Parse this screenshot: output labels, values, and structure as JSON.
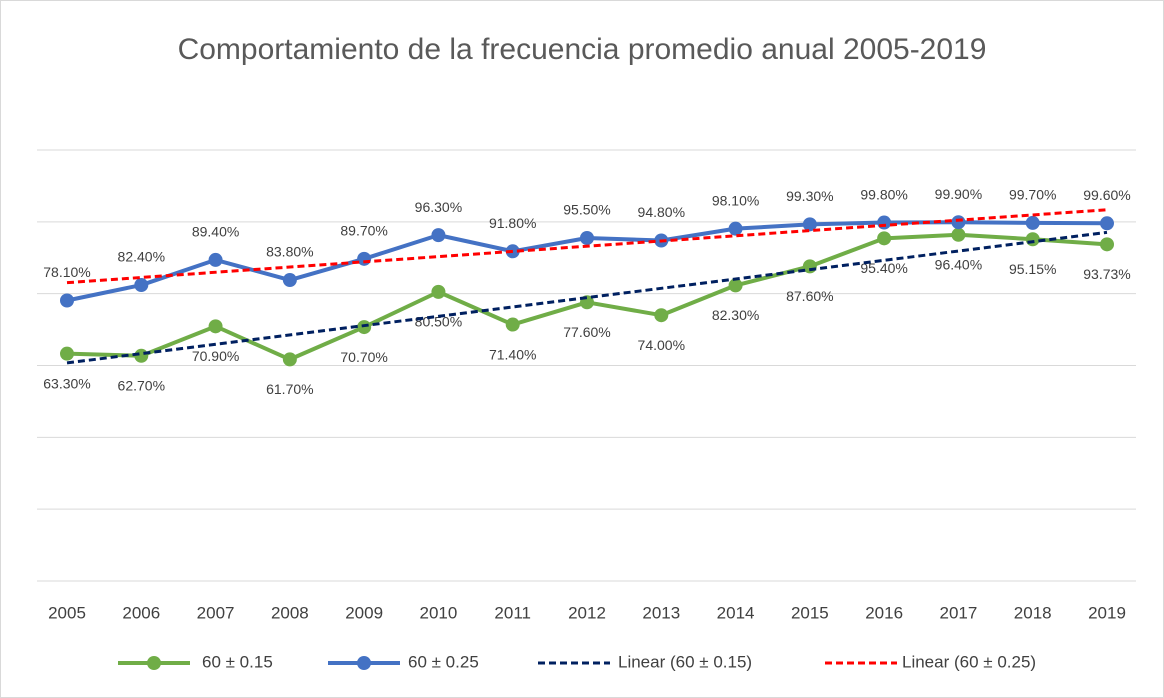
{
  "chart_data": {
    "type": "line",
    "title": "Comportamiento de la frecuencia promedio anual 2005-2019",
    "categories": [
      "2005",
      "2006",
      "2007",
      "2008",
      "2009",
      "2010",
      "2011",
      "2012",
      "2013",
      "2014",
      "2015",
      "2016",
      "2017",
      "2018",
      "2019"
    ],
    "series": [
      {
        "name": "60 ± 0.15",
        "color": "#70ad47",
        "values": [
          63.3,
          62.7,
          70.9,
          61.7,
          70.7,
          80.5,
          71.4,
          77.6,
          74.0,
          82.3,
          87.6,
          95.4,
          96.4,
          95.15,
          93.73
        ],
        "value_labels": [
          "63.30%",
          "62.70%",
          "70.90%",
          "61.70%",
          "70.70%",
          "80.50%",
          "71.40%",
          "77.60%",
          "74.00%",
          "82.30%",
          "87.60%",
          "95.40%",
          "96.40%",
          "95.15%",
          "93.73%"
        ],
        "trendline": {
          "name": "Linear (60 ± 0.15)",
          "color": "#002060"
        }
      },
      {
        "name": "60 ± 0.25",
        "color": "#4472c4",
        "values": [
          78.1,
          82.4,
          89.4,
          83.8,
          89.7,
          96.3,
          91.8,
          95.5,
          94.8,
          98.1,
          99.3,
          99.8,
          99.9,
          99.7,
          99.6
        ],
        "value_labels": [
          "78.10%",
          "82.40%",
          "89.40%",
          "83.80%",
          "89.70%",
          "96.30%",
          "91.80%",
          "95.50%",
          "94.80%",
          "98.10%",
          "99.30%",
          "99.80%",
          "99.90%",
          "99.70%",
          "99.60%"
        ],
        "trendline": {
          "name": "Linear (60 ± 0.25)",
          "color": "#ff0000"
        }
      }
    ],
    "ylim": [
      0,
      120
    ],
    "yticks": [
      0,
      20,
      40,
      60,
      80,
      100,
      120
    ],
    "grid": true
  }
}
